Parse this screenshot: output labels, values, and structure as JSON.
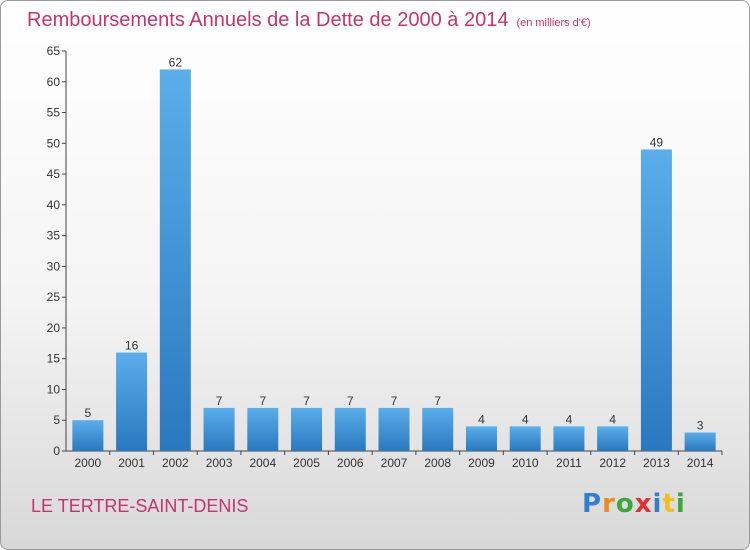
{
  "chart_data": {
    "type": "bar",
    "title": "Remboursements Annuels de la Dette de 2000 à 2014",
    "subtitle": "(en milliers d'€)",
    "categories": [
      "2000",
      "2001",
      "2002",
      "2003",
      "2004",
      "2005",
      "2006",
      "2007",
      "2008",
      "2009",
      "2010",
      "2011",
      "2012",
      "2013",
      "2014"
    ],
    "values": [
      5,
      16,
      62,
      7,
      7,
      7,
      7,
      7,
      7,
      4,
      4,
      4,
      4,
      49,
      3
    ],
    "xlabel": "",
    "ylabel": "",
    "ylim": [
      0,
      65
    ],
    "yticks": [
      0,
      5,
      10,
      15,
      20,
      25,
      30,
      35,
      40,
      45,
      50,
      55,
      60,
      65
    ],
    "grid": false,
    "data_labels": true,
    "bar_color": "#3d8fd1"
  },
  "footer": {
    "commune": "LE TERTRE-SAINT-DENIS",
    "brand_letters": [
      "P",
      "r",
      "o",
      "x",
      "i",
      "t",
      "i"
    ],
    "brand_colors": [
      "#2e7fd0",
      "#f08a1c",
      "#3aa83a",
      "#e03030",
      "#2e7fd0",
      "#f0c020",
      "#3aa83a"
    ]
  }
}
